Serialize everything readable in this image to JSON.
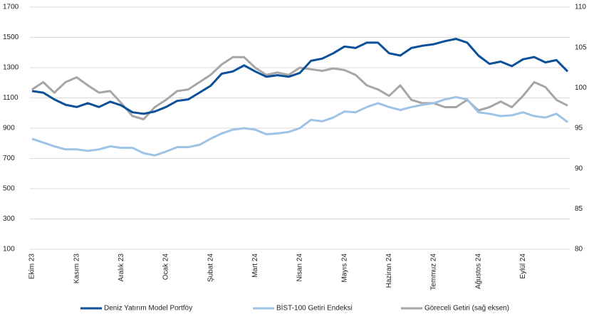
{
  "chart_data": {
    "type": "line",
    "categories": [
      "Ekim 23",
      null,
      null,
      null,
      "Kasım 23",
      null,
      null,
      null,
      "Aralık 23",
      null,
      null,
      null,
      "Ocak 24",
      null,
      null,
      null,
      "Şubat 24",
      null,
      null,
      null,
      "Mart 24",
      null,
      null,
      null,
      "Nisan 24",
      null,
      null,
      null,
      "Mayıs 24",
      null,
      null,
      null,
      "Haziran 24",
      null,
      null,
      null,
      "Temmuz 24",
      null,
      null,
      null,
      "Ağustos 24",
      null,
      null,
      null,
      "Eylül 24",
      null,
      null,
      null,
      null
    ],
    "ylim": [
      100,
      1700
    ],
    "yticks": [
      100,
      300,
      500,
      700,
      900,
      1100,
      1300,
      1500,
      1700
    ],
    "y2lim": [
      80,
      110
    ],
    "y2ticks": [
      80,
      85,
      90,
      95,
      100,
      105,
      110
    ],
    "grid": true,
    "legend": "bottom",
    "series": [
      {
        "name": "Deniz Yatırım Model Portföy",
        "color": "#0b4f99",
        "values": [
          1145,
          1135,
          1090,
          1055,
          1040,
          1065,
          1040,
          1075,
          1050,
          1005,
          995,
          1010,
          1040,
          1080,
          1090,
          1135,
          1180,
          1260,
          1275,
          1315,
          1275,
          1240,
          1250,
          1240,
          1265,
          1345,
          1360,
          1395,
          1440,
          1430,
          1465,
          1465,
          1395,
          1380,
          1430,
          1445,
          1455,
          1475,
          1490,
          1465,
          1380,
          1325,
          1340,
          1310,
          1355,
          1370,
          1335,
          1350,
          1275
        ]
      },
      {
        "name": "BİST-100 Getiri Endeksi",
        "color": "#9dc3e6",
        "values": [
          830,
          805,
          780,
          760,
          760,
          750,
          760,
          780,
          770,
          770,
          735,
          720,
          745,
          775,
          775,
          790,
          830,
          865,
          890,
          900,
          890,
          860,
          865,
          875,
          900,
          955,
          945,
          970,
          1010,
          1005,
          1040,
          1065,
          1040,
          1020,
          1040,
          1055,
          1065,
          1090,
          1105,
          1090,
          1005,
          995,
          980,
          985,
          1005,
          980,
          970,
          995,
          940
        ]
      },
      {
        "name": "Göreceli Getiri (sağ eksen)",
        "color": "#a6a6a6",
        "axis": "y2",
        "values": [
          99.8,
          100.7,
          99.4,
          100.7,
          101.3,
          100.3,
          99.4,
          99.6,
          98.1,
          96.5,
          96.1,
          97.6,
          98.5,
          99.6,
          99.8,
          100.7,
          101.6,
          102.9,
          103.8,
          103.8,
          102.5,
          101.6,
          101.9,
          101.6,
          102.5,
          102.3,
          102.1,
          102.4,
          102.2,
          101.6,
          100.3,
          99.8,
          99.0,
          100.3,
          98.5,
          98.1,
          98.1,
          97.6,
          97.6,
          98.5,
          97.2,
          97.6,
          98.3,
          97.6,
          99.0,
          100.7,
          100.1,
          98.5,
          97.8
        ]
      }
    ]
  }
}
